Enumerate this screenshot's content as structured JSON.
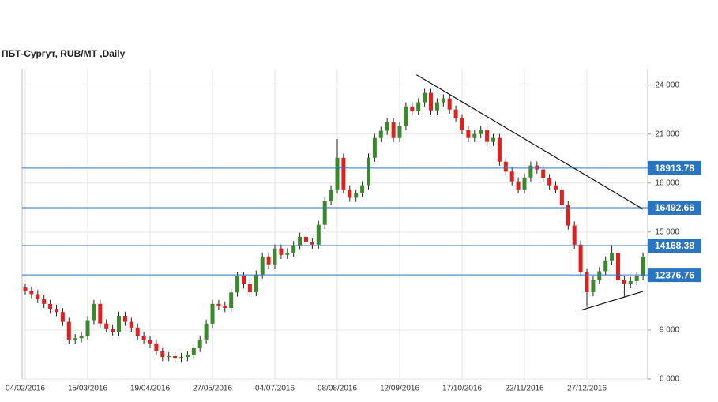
{
  "chart_data": {
    "type": "candlestick",
    "title": "ПБТ-Сургут,  RUB/MT ,Daily",
    "categories": [
      "04/02/2016",
      null,
      null,
      null,
      null,
      null,
      null,
      null,
      null,
      null,
      "15/03/2016",
      null,
      null,
      null,
      null,
      null,
      null,
      null,
      null,
      null,
      "19/04/2016",
      null,
      null,
      null,
      null,
      null,
      null,
      null,
      null,
      null,
      "27/05/2016",
      null,
      null,
      null,
      null,
      null,
      null,
      null,
      null,
      null,
      "04/07/2016",
      null,
      null,
      null,
      null,
      null,
      null,
      null,
      null,
      null,
      "08/08/2016",
      null,
      null,
      null,
      null,
      null,
      null,
      null,
      null,
      null,
      "12/09/2016",
      null,
      null,
      null,
      null,
      null,
      null,
      null,
      null,
      null,
      "17/10/2016",
      null,
      null,
      null,
      null,
      null,
      null,
      null,
      null,
      null,
      "22/11/2016",
      null,
      null,
      null,
      null,
      null,
      null,
      null,
      null,
      null,
      "27/12/2016",
      null,
      null,
      null,
      null,
      null,
      null,
      null,
      null,
      null
    ],
    "open": [
      11600,
      11420,
      11200,
      10900,
      10600,
      10300,
      10100,
      9500,
      8420,
      8500,
      8660,
      9600,
      10600,
      9400,
      9100,
      8900,
      9870,
      9500,
      9150,
      8660,
      8400,
      8180,
      7700,
      7350,
      7400,
      7300,
      7350,
      7450,
      7900,
      8420,
      9390,
      10600,
      10500,
      10350,
      11300,
      12290,
      11800,
      11320,
      12400,
      13500,
      13020,
      13990,
      13600,
      13740,
      14200,
      14710,
      14400,
      14230,
      15440,
      16890,
      17610,
      19550,
      17610,
      17100,
      17370,
      17860,
      19550,
      20760,
      21200,
      21730,
      20760,
      21490,
      22690,
      22400,
      22940,
      23520,
      22450,
      22940,
      23180,
      22500,
      21970,
      21240,
      20760,
      21000,
      21240,
      20520,
      20760,
      19310,
      18700,
      18100,
      17610,
      18340,
      19070,
      18830,
      18300,
      17860,
      17610,
      16650,
      15400,
      14230,
      12530,
      11320,
      12050,
      12600,
      13260,
      13740,
      12050,
      11810,
      12000,
      12290
    ],
    "high": [
      11850,
      11670,
      11450,
      11150,
      10850,
      10550,
      10350,
      9750,
      8750,
      8910,
      9850,
      10850,
      10850,
      9650,
      9350,
      10120,
      10120,
      9750,
      9400,
      8910,
      8650,
      8430,
      7950,
      7650,
      7650,
      7600,
      7700,
      8150,
      8670,
      9640,
      10850,
      10850,
      10750,
      11550,
      12540,
      12540,
      12050,
      12650,
      13750,
      13750,
      14240,
      14240,
      13990,
      14450,
      14960,
      14960,
      14650,
      15690,
      17140,
      17860,
      20700,
      19800,
      17860,
      17620,
      18110,
      19800,
      21010,
      21450,
      21980,
      21980,
      21740,
      22940,
      22940,
      23190,
      23770,
      23770,
      23190,
      23430,
      23430,
      22750,
      22220,
      21490,
      21250,
      21490,
      21490,
      21010,
      21010,
      19560,
      18950,
      18350,
      18590,
      19320,
      19320,
      19080,
      18550,
      18110,
      17860,
      16900,
      15650,
      14480,
      12780,
      12300,
      12850,
      13510,
      14200,
      13990,
      12300,
      12250,
      12540,
      13750
    ],
    "low": [
      11170,
      10950,
      10650,
      10350,
      10050,
      9850,
      9250,
      8170,
      8170,
      8250,
      8410,
      9350,
      9150,
      8850,
      8650,
      8650,
      9250,
      8900,
      8410,
      8150,
      7930,
      7450,
      7100,
      7100,
      7050,
      7050,
      7100,
      7200,
      7650,
      8170,
      9140,
      10250,
      10100,
      10100,
      11050,
      11550,
      11070,
      11070,
      12150,
      12770,
      12770,
      13350,
      13350,
      13490,
      13950,
      14150,
      13980,
      13980,
      15190,
      16640,
      17360,
      17360,
      16850,
      16850,
      17120,
      17610,
      19300,
      20510,
      20950,
      20510,
      20510,
      21240,
      22150,
      22150,
      22690,
      22200,
      22200,
      22690,
      22250,
      21720,
      20990,
      20510,
      20510,
      20750,
      20270,
      20270,
      19060,
      18450,
      17850,
      17360,
      17360,
      18090,
      18580,
      18050,
      17610,
      17360,
      16400,
      15150,
      13980,
      12280,
      10400,
      11070,
      11800,
      12350,
      13010,
      11800,
      11000,
      11560,
      11750,
      12040
    ],
    "close": [
      11420,
      11200,
      10900,
      10600,
      10300,
      10100,
      9500,
      8420,
      8500,
      8660,
      9600,
      10600,
      9400,
      9100,
      8900,
      9870,
      9500,
      9150,
      8660,
      8400,
      8180,
      7700,
      7350,
      7400,
      7300,
      7350,
      7450,
      7900,
      8420,
      9390,
      10600,
      10500,
      10350,
      11300,
      12290,
      11800,
      11320,
      12400,
      13500,
      13020,
      13990,
      13600,
      13740,
      14200,
      14710,
      14400,
      14230,
      15440,
      16890,
      17610,
      19550,
      17610,
      17100,
      17370,
      17860,
      19550,
      20760,
      21200,
      21730,
      20760,
      21490,
      22690,
      22400,
      22940,
      23520,
      22450,
      22940,
      23180,
      22500,
      21970,
      21240,
      20760,
      21000,
      21240,
      20520,
      20760,
      19310,
      18700,
      18100,
      17610,
      18340,
      19070,
      18830,
      18300,
      17860,
      17610,
      16650,
      15400,
      14230,
      12530,
      11320,
      12050,
      12600,
      13260,
      13740,
      12050,
      11810,
      12000,
      12290,
      13500
    ],
    "up_color": "#3a8a2c",
    "down_color": "#e0201e",
    "ylim": [
      6000,
      25000
    ],
    "yticks": [
      {
        "value": 6000,
        "label": "6 000"
      },
      {
        "value": 9000,
        "label": "9 000"
      },
      {
        "value": 15000,
        "label": "15 000"
      },
      {
        "value": 18000,
        "label": "18 000"
      },
      {
        "value": 21000,
        "label": "21 000"
      },
      {
        "value": 24000,
        "label": "24 000"
      }
    ],
    "grid": true,
    "levels": [
      18913.78,
      16492.66,
      14168.38,
      12376.76
    ],
    "level_color": "#2a74c0",
    "trendlines": [
      {
        "x": [
          62.7,
          99
        ],
        "values": [
          24630,
          16400
        ]
      },
      {
        "x": [
          89,
          99
        ],
        "values": [
          10210,
          11370
        ]
      }
    ]
  }
}
